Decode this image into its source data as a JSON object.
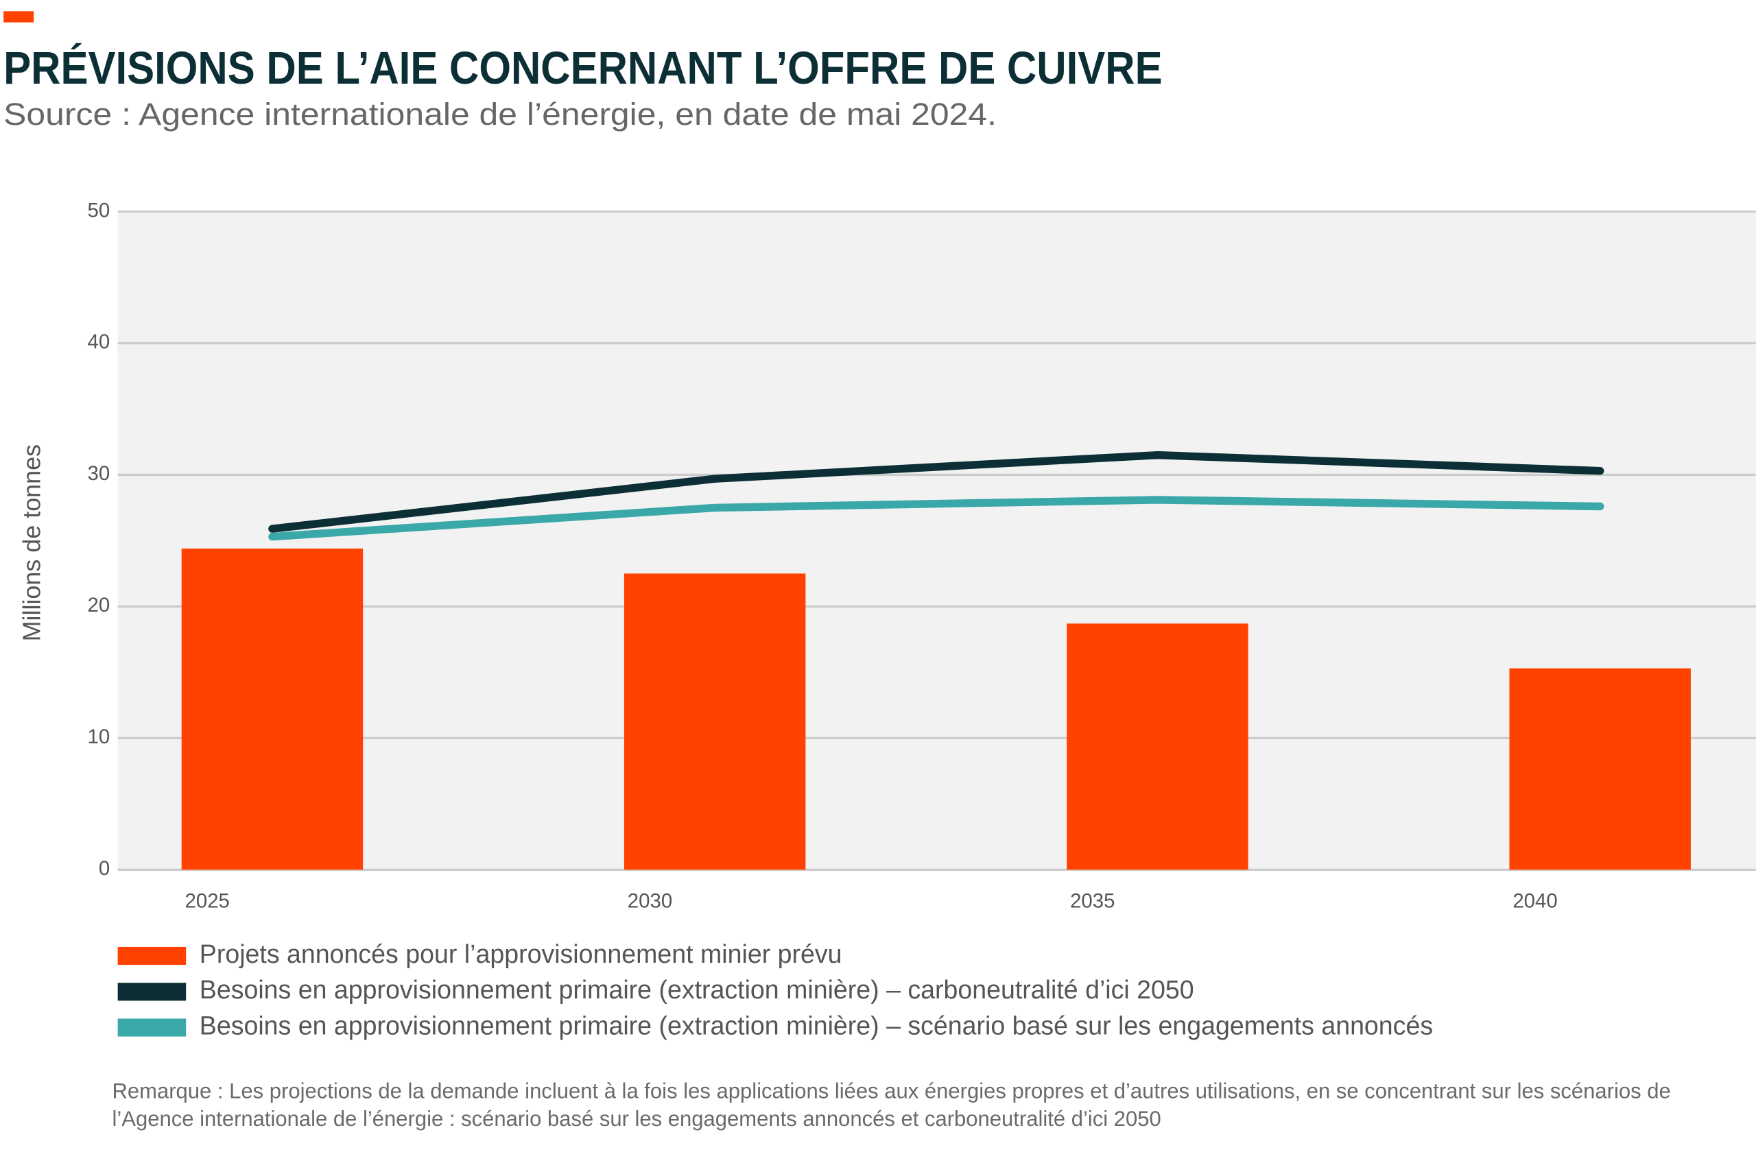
{
  "chart_data": {
    "type": "bar",
    "title": "PRÉVISIONS DE L’AIE CONCERNANT L’OFFRE DE CUIVRE",
    "subtitle": "Source : Agence internationale de l’énergie, en date de mai 2024.",
    "ylabel": "Millions de tonnes",
    "categories": [
      "2025",
      "2030",
      "2035",
      "2040"
    ],
    "series": [
      {
        "name": "Projets annoncés pour l’approvisionnement minier prévu",
        "type": "bar",
        "color": "#ff4200",
        "values": [
          24.4,
          22.5,
          18.7,
          15.3
        ]
      },
      {
        "name": "Besoins en approvisionnement primaire (extraction minière) – carboneutralité d’ici 2050",
        "type": "line",
        "color": "#0b2f35",
        "values": [
          25.9,
          29.7,
          31.5,
          30.3
        ]
      },
      {
        "name": "Besoins en approvisionnement primaire (extraction minière) – scénario basé sur les engagements annoncés",
        "type": "line",
        "color": "#3aa7a8",
        "values": [
          25.3,
          27.5,
          28.1,
          27.6
        ]
      }
    ],
    "ylim": [
      0,
      50
    ],
    "yticks": [
      0,
      10,
      20,
      30,
      40,
      50
    ],
    "grid": true,
    "note": "Remarque : Les projections de la demande incluent à la fois les applications liées aux énergies propres et d’autres utilisations, en se concentrant sur les scénarios de l’Agence internationale de l’énergie : scénario basé sur les engagements annoncés et carboneutralité d’ici 2050"
  }
}
